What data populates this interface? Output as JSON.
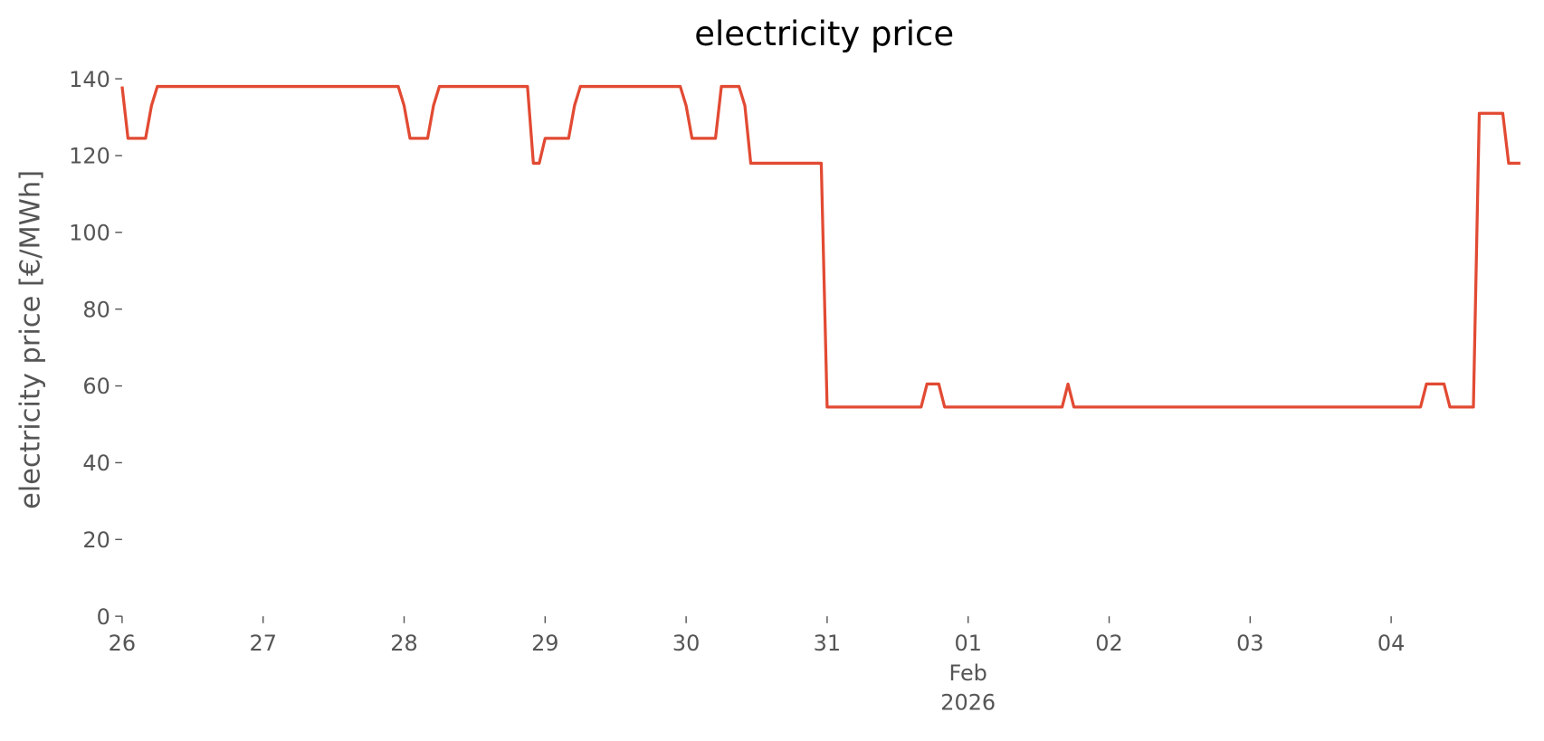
{
  "chart_data": {
    "type": "line",
    "title": "electricity price",
    "ylabel": "electricity price [€/MWh]",
    "series": [
      {
        "name": "electricity price",
        "color": "#E24A33",
        "x": [
          0,
          1,
          4,
          5,
          6,
          47,
          48,
          49,
          52,
          53,
          54,
          69,
          70,
          71,
          72,
          76,
          77,
          78,
          95,
          96,
          97,
          101,
          102,
          105,
          106,
          107,
          119,
          120,
          136,
          137,
          139,
          140,
          160,
          161,
          162,
          221,
          222,
          225,
          226,
          230,
          231,
          235,
          236,
          238
        ],
        "values": [
          138,
          124.5,
          124.5,
          133,
          138,
          138,
          133,
          124.5,
          124.5,
          133,
          138,
          138,
          118,
          118,
          124.5,
          124.5,
          133,
          138,
          138,
          133,
          124.5,
          124.5,
          138,
          138,
          133,
          118,
          118,
          54.5,
          54.5,
          60.5,
          60.5,
          54.5,
          54.5,
          60.5,
          54.5,
          54.5,
          60.5,
          60.5,
          54.5,
          54.5,
          131,
          131,
          118,
          118
        ]
      }
    ],
    "xlim": [
      0,
      239
    ],
    "xticks": [
      {
        "value": 0,
        "label": [
          "26"
        ]
      },
      {
        "value": 24,
        "label": [
          "27"
        ]
      },
      {
        "value": 48,
        "label": [
          "28"
        ]
      },
      {
        "value": 72,
        "label": [
          "29"
        ]
      },
      {
        "value": 96,
        "label": [
          "30"
        ]
      },
      {
        "value": 120,
        "label": [
          "31"
        ]
      },
      {
        "value": 144,
        "label": [
          "01",
          "Feb",
          "2026"
        ]
      },
      {
        "value": 168,
        "label": [
          "02"
        ]
      },
      {
        "value": 192,
        "label": [
          "03"
        ]
      },
      {
        "value": 216,
        "label": [
          "04"
        ]
      }
    ],
    "ylim": [
      0,
      140
    ],
    "yticks": [
      0,
      20,
      40,
      60,
      80,
      100,
      120,
      140
    ]
  }
}
